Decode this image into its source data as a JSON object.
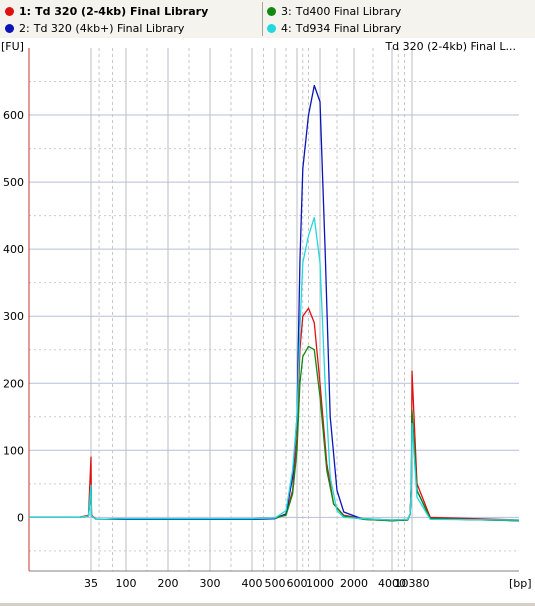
{
  "legend": {
    "left": [
      {
        "number": "1:",
        "label": "Td 320 (2-4kb) Final Library",
        "color": "#dd1111",
        "bold": true
      },
      {
        "number": "2:",
        "label": "Td 320 (4kb+) Final Library",
        "color": "#0a14b8",
        "bold": false
      }
    ],
    "right": [
      {
        "number": "3:",
        "label": "Td400 Final Library",
        "color": "#118811",
        "bold": false
      },
      {
        "number": "4:",
        "label": "Td934 Final Library",
        "color": "#22d8dc",
        "bold": false
      }
    ]
  },
  "chart_data": {
    "type": "line",
    "title": "Td 320 (2-4kb) Final L...",
    "ylabel": "[FU]",
    "xlabel": "[bp]",
    "ylim": [
      -80,
      700
    ],
    "yticks": [
      0,
      100,
      200,
      300,
      400,
      500,
      600
    ],
    "x_tick_labels": [
      "35",
      "100",
      "200",
      "300",
      "400",
      "500",
      "600",
      "1000",
      "2000",
      "4000",
      "10380"
    ],
    "x_tick_bp": [
      35,
      100,
      200,
      300,
      400,
      500,
      600,
      1000,
      2000,
      4000,
      10380
    ],
    "grid": true,
    "series": [
      {
        "name": "1: Td 320 (2-4kb) Final Library",
        "color": "#dd1111",
        "points": [
          [
            10,
            0
          ],
          [
            30,
            0
          ],
          [
            34,
            3
          ],
          [
            35,
            90
          ],
          [
            36,
            3
          ],
          [
            45,
            -3
          ],
          [
            100,
            -2
          ],
          [
            200,
            -2
          ],
          [
            300,
            -2
          ],
          [
            400,
            -2
          ],
          [
            500,
            -1
          ],
          [
            550,
            5
          ],
          [
            580,
            40
          ],
          [
            600,
            120
          ],
          [
            650,
            250
          ],
          [
            700,
            300
          ],
          [
            800,
            312
          ],
          [
            900,
            290
          ],
          [
            1000,
            200
          ],
          [
            1200,
            80
          ],
          [
            1400,
            20
          ],
          [
            1700,
            3
          ],
          [
            2500,
            -2
          ],
          [
            4000,
            -4
          ],
          [
            9000,
            -3
          ],
          [
            9800,
            5
          ],
          [
            10200,
            60
          ],
          [
            10380,
            218
          ],
          [
            10550,
            50
          ],
          [
            11000,
            0
          ],
          [
            14000,
            -4
          ]
        ]
      },
      {
        "name": "2: Td 320 (4kb+) Final Library",
        "color": "#0a14b8",
        "points": [
          [
            10,
            0
          ],
          [
            30,
            0
          ],
          [
            34,
            2
          ],
          [
            35,
            45
          ],
          [
            36,
            2
          ],
          [
            45,
            -3
          ],
          [
            100,
            -3
          ],
          [
            200,
            -3
          ],
          [
            300,
            -3
          ],
          [
            400,
            -3
          ],
          [
            500,
            -2
          ],
          [
            550,
            5
          ],
          [
            580,
            60
          ],
          [
            600,
            150
          ],
          [
            650,
            380
          ],
          [
            700,
            520
          ],
          [
            800,
            600
          ],
          [
            900,
            644
          ],
          [
            1000,
            620
          ],
          [
            1150,
            400
          ],
          [
            1300,
            150
          ],
          [
            1500,
            40
          ],
          [
            1700,
            8
          ],
          [
            2500,
            -3
          ],
          [
            4000,
            -5
          ],
          [
            9000,
            -4
          ],
          [
            9800,
            5
          ],
          [
            10200,
            50
          ],
          [
            10380,
            150
          ],
          [
            10550,
            40
          ],
          [
            11000,
            -2
          ],
          [
            14000,
            -5
          ]
        ]
      },
      {
        "name": "3: Td400 Final Library",
        "color": "#118811",
        "points": [
          [
            10,
            0
          ],
          [
            30,
            0
          ],
          [
            34,
            2
          ],
          [
            35,
            45
          ],
          [
            36,
            2
          ],
          [
            45,
            -3
          ],
          [
            100,
            -2
          ],
          [
            200,
            -2
          ],
          [
            300,
            -2
          ],
          [
            400,
            -2
          ],
          [
            500,
            -1
          ],
          [
            550,
            3
          ],
          [
            580,
            35
          ],
          [
            600,
            100
          ],
          [
            650,
            200
          ],
          [
            700,
            240
          ],
          [
            800,
            255
          ],
          [
            900,
            250
          ],
          [
            1000,
            180
          ],
          [
            1200,
            70
          ],
          [
            1400,
            20
          ],
          [
            1700,
            2
          ],
          [
            2500,
            -3
          ],
          [
            4000,
            -5
          ],
          [
            9000,
            -4
          ],
          [
            9800,
            5
          ],
          [
            10200,
            50
          ],
          [
            10380,
            160
          ],
          [
            10550,
            40
          ],
          [
            11000,
            -2
          ],
          [
            14000,
            -5
          ]
        ]
      },
      {
        "name": "4: Td934 Final Library",
        "color": "#22d8dc",
        "points": [
          [
            10,
            0
          ],
          [
            30,
            0
          ],
          [
            34,
            2
          ],
          [
            35,
            48
          ],
          [
            36,
            2
          ],
          [
            45,
            -3
          ],
          [
            100,
            -2
          ],
          [
            200,
            -2
          ],
          [
            300,
            -2
          ],
          [
            400,
            -2
          ],
          [
            500,
            -1
          ],
          [
            550,
            10
          ],
          [
            580,
            70
          ],
          [
            600,
            150
          ],
          [
            650,
            280
          ],
          [
            700,
            380
          ],
          [
            800,
            420
          ],
          [
            900,
            447
          ],
          [
            1000,
            380
          ],
          [
            1150,
            200
          ],
          [
            1300,
            60
          ],
          [
            1500,
            10
          ],
          [
            1700,
            0
          ],
          [
            2500,
            -2
          ],
          [
            4000,
            -4
          ],
          [
            9000,
            -3
          ],
          [
            9800,
            5
          ],
          [
            10200,
            50
          ],
          [
            10380,
            140
          ],
          [
            10550,
            30
          ],
          [
            11000,
            -3
          ],
          [
            14000,
            -4
          ]
        ]
      }
    ]
  }
}
